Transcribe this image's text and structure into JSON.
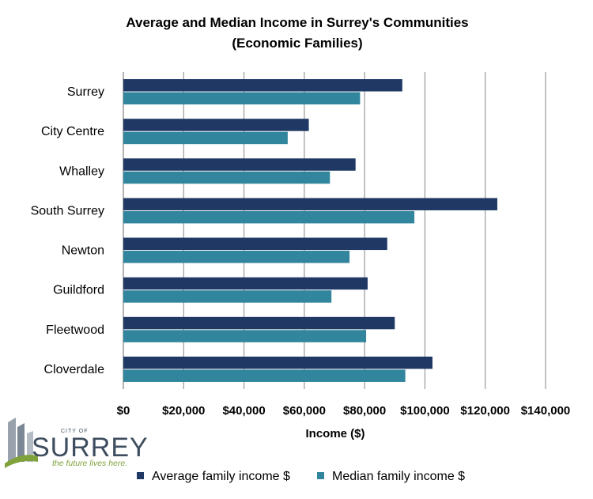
{
  "chart_data": {
    "type": "bar",
    "orientation": "horizontal",
    "title": "Average and Median Income in Surrey's Communities",
    "subtitle": "(Economic Families)",
    "xlabel": "Income ($)",
    "ylabel": "",
    "xlim": [
      0,
      140000
    ],
    "x_ticks": [
      0,
      20000,
      40000,
      60000,
      80000,
      100000,
      120000,
      140000
    ],
    "x_tick_labels": [
      "$0",
      "$20,000",
      "$40,000",
      "$60,000",
      "$80,000",
      "$100,000",
      "$120,000",
      "$140,000"
    ],
    "grid": "vertical",
    "legend_position": "bottom",
    "categories": [
      "Surrey",
      "City Centre",
      "Whalley",
      "South Surrey",
      "Newton",
      "Guildford",
      "Fleetwood",
      "Cloverdale"
    ],
    "series": [
      {
        "name": "Average family income $",
        "color": "#1f3864",
        "values": [
          92500,
          61500,
          77000,
          124000,
          87500,
          81000,
          90000,
          102500
        ]
      },
      {
        "name": "Median family income $",
        "color": "#31859c",
        "values": [
          78500,
          54500,
          68500,
          96500,
          75000,
          69000,
          80500,
          93500
        ]
      }
    ]
  },
  "logo": {
    "city_of": "CITY OF",
    "name": "SURREY",
    "tagline": "the future lives here."
  }
}
